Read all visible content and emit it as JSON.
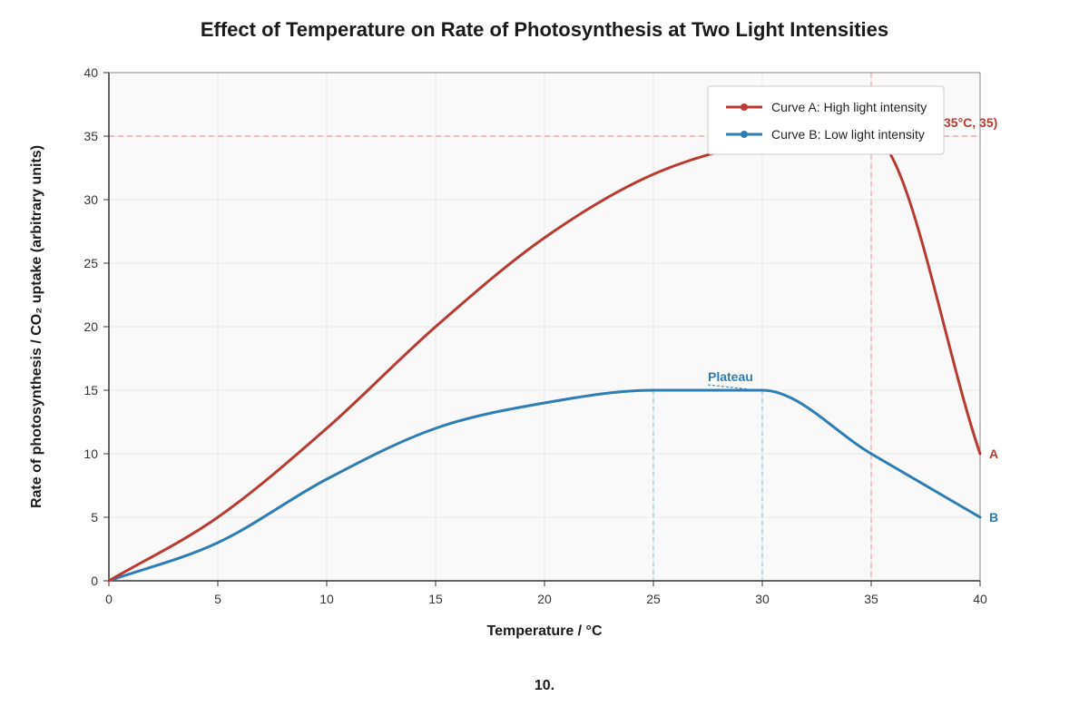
{
  "chart_data": {
    "type": "line",
    "title": "Effect of Temperature on Rate of Photosynthesis at Two Light Intensities",
    "xlabel": "Temperature / °C",
    "ylabel": "Rate of photosynthesis / CO₂ uptake (arbitrary units)",
    "xlim": [
      0,
      40
    ],
    "ylim": [
      0,
      40
    ],
    "xticks": [
      0,
      5,
      10,
      15,
      20,
      25,
      30,
      35,
      40
    ],
    "yticks": [
      0,
      5,
      10,
      15,
      20,
      25,
      30,
      35,
      40
    ],
    "grid": true,
    "legend_position": "top-right",
    "series": [
      {
        "name": "Curve A: High light intensity",
        "end_label": "A",
        "color": "#b83b33",
        "x": [
          0,
          5,
          10,
          15,
          20,
          25,
          30,
          35,
          40
        ],
        "y": [
          0,
          5,
          12,
          20,
          27,
          32,
          34.5,
          35,
          10
        ]
      },
      {
        "name": "Curve B: Low light intensity",
        "end_label": "B",
        "color": "#2e7db5",
        "x": [
          0,
          5,
          10,
          15,
          20,
          25,
          30,
          35,
          40
        ],
        "y": [
          0,
          3,
          8,
          12,
          14,
          15,
          15,
          10,
          5
        ]
      }
    ],
    "annotations": {
      "peak_label": "35°C, 35)",
      "peak_point": [
        35,
        35
      ],
      "peak_color": "#b83b33",
      "plateau_label": "Plateau",
      "plateau_range": [
        25,
        30
      ],
      "plateau_y": 15,
      "plateau_color": "#2e7db5"
    },
    "caption": "10."
  }
}
